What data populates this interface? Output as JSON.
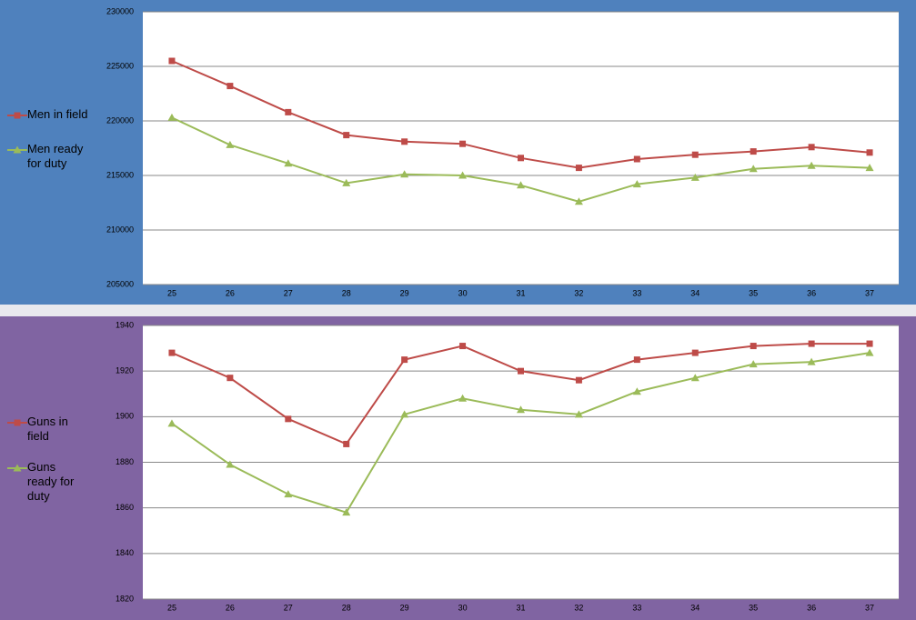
{
  "chart_data": [
    {
      "type": "line",
      "panel_color": "#4f81bd",
      "categories": [
        "25",
        "26",
        "27",
        "28",
        "29",
        "30",
        "31",
        "32",
        "33",
        "34",
        "35",
        "36",
        "37"
      ],
      "ylim": [
        205000,
        230000
      ],
      "yticks": [
        205000,
        210000,
        215000,
        220000,
        225000,
        230000
      ],
      "grid": true,
      "legend": "left",
      "series": [
        {
          "name": "Men in field",
          "color": "#be4b48",
          "marker": "square",
          "values": [
            225500,
            223200,
            220800,
            218700,
            218100,
            217900,
            216600,
            215700,
            216500,
            216900,
            217200,
            217600,
            217100
          ]
        },
        {
          "name": "Men ready for duty",
          "color": "#9bbb59",
          "marker": "triangle",
          "values": [
            220300,
            217800,
            216100,
            214300,
            215100,
            215000,
            214100,
            212600,
            214200,
            214800,
            215600,
            215900,
            215700
          ]
        }
      ]
    },
    {
      "type": "line",
      "panel_color": "#8064a2",
      "categories": [
        "25",
        "26",
        "27",
        "28",
        "29",
        "30",
        "31",
        "32",
        "33",
        "34",
        "35",
        "36",
        "37"
      ],
      "ylim": [
        1820,
        1940
      ],
      "yticks": [
        1820,
        1840,
        1860,
        1880,
        1900,
        1920,
        1940
      ],
      "grid": true,
      "legend": "left",
      "series": [
        {
          "name": "Guns in field",
          "color": "#be4b48",
          "marker": "square",
          "values": [
            1928,
            1917,
            1899,
            1888,
            1925,
            1931,
            1920,
            1916,
            1925,
            1928,
            1931,
            1932,
            1932
          ]
        },
        {
          "name": "Guns ready for duty",
          "color": "#9bbb59",
          "marker": "triangle",
          "values": [
            1897,
            1879,
            1866,
            1858,
            1901,
            1908,
            1903,
            1901,
            1911,
            1917,
            1923,
            1924,
            1928
          ]
        }
      ]
    }
  ]
}
